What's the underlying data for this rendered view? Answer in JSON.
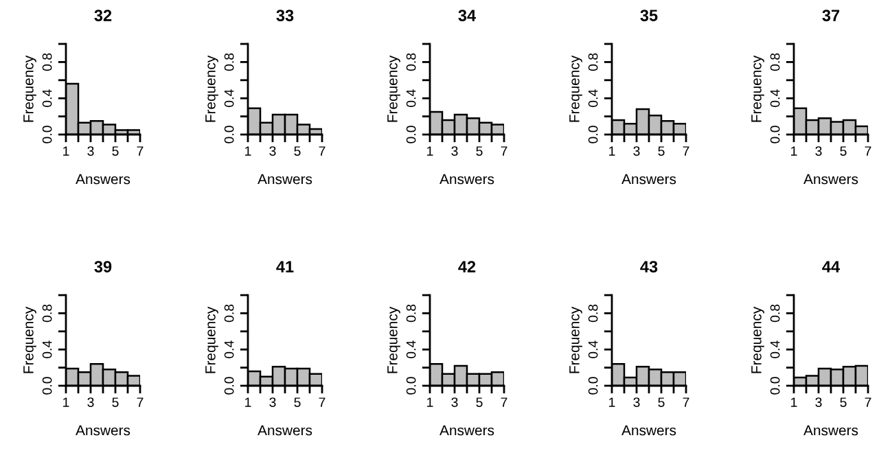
{
  "chart_data": [
    {
      "type": "histogram",
      "title": "32",
      "xlabel": "Answers",
      "ylabel": "Frequency",
      "bins": [
        1,
        2,
        3,
        4,
        5,
        6,
        7
      ],
      "values": [
        0.56,
        0.13,
        0.15,
        0.11,
        0.05,
        0.05
      ],
      "color": "#bebebe",
      "xlim": [
        1,
        7
      ],
      "ylim": [
        0,
        1
      ],
      "xticks": [
        1,
        {
          "value": 2,
          "label": null
        },
        3,
        {
          "value": 4,
          "label": null
        },
        5,
        {
          "value": 6,
          "label": null
        },
        7
      ],
      "yticks": [
        {
          "value": 0,
          "label": "0.0"
        },
        {
          "value": 0.2,
          "label": null
        },
        {
          "value": 0.4,
          "label": "0.4"
        },
        {
          "value": 0.6,
          "label": null
        },
        {
          "value": 0.8,
          "label": "0.8"
        },
        {
          "value": 1,
          "label": null
        }
      ]
    },
    {
      "type": "histogram",
      "title": "33",
      "xlabel": "Answers",
      "ylabel": "Frequency",
      "bins": [
        1,
        2,
        3,
        4,
        5,
        6,
        7
      ],
      "values": [
        0.29,
        0.13,
        0.22,
        0.22,
        0.11,
        0.06
      ],
      "color": "#bebebe",
      "xlim": [
        1,
        7
      ],
      "ylim": [
        0,
        1
      ],
      "xticks": [
        1,
        {
          "value": 2,
          "label": null
        },
        3,
        {
          "value": 4,
          "label": null
        },
        5,
        {
          "value": 6,
          "label": null
        },
        7
      ],
      "yticks": [
        {
          "value": 0,
          "label": "0.0"
        },
        {
          "value": 0.2,
          "label": null
        },
        {
          "value": 0.4,
          "label": "0.4"
        },
        {
          "value": 0.6,
          "label": null
        },
        {
          "value": 0.8,
          "label": "0.8"
        },
        {
          "value": 1,
          "label": null
        }
      ]
    },
    {
      "type": "histogram",
      "title": "34",
      "xlabel": "Answers",
      "ylabel": "Frequency",
      "bins": [
        1,
        2,
        3,
        4,
        5,
        6,
        7
      ],
      "values": [
        0.25,
        0.16,
        0.22,
        0.18,
        0.13,
        0.11
      ],
      "color": "#bebebe",
      "xlim": [
        1,
        7
      ],
      "ylim": [
        0,
        1
      ],
      "xticks": [
        1,
        {
          "value": 2,
          "label": null
        },
        3,
        {
          "value": 4,
          "label": null
        },
        5,
        {
          "value": 6,
          "label": null
        },
        7
      ],
      "yticks": [
        {
          "value": 0,
          "label": "0.0"
        },
        {
          "value": 0.2,
          "label": null
        },
        {
          "value": 0.4,
          "label": "0.4"
        },
        {
          "value": 0.6,
          "label": null
        },
        {
          "value": 0.8,
          "label": "0.8"
        },
        {
          "value": 1,
          "label": null
        }
      ]
    },
    {
      "type": "histogram",
      "title": "35",
      "xlabel": "Answers",
      "ylabel": "Frequency",
      "bins": [
        1,
        2,
        3,
        4,
        5,
        6,
        7
      ],
      "values": [
        0.16,
        0.12,
        0.28,
        0.21,
        0.15,
        0.12
      ],
      "color": "#bebebe",
      "xlim": [
        1,
        7
      ],
      "ylim": [
        0,
        1
      ],
      "xticks": [
        1,
        {
          "value": 2,
          "label": null
        },
        3,
        {
          "value": 4,
          "label": null
        },
        5,
        {
          "value": 6,
          "label": null
        },
        7
      ],
      "yticks": [
        {
          "value": 0,
          "label": "0.0"
        },
        {
          "value": 0.2,
          "label": null
        },
        {
          "value": 0.4,
          "label": "0.4"
        },
        {
          "value": 0.6,
          "label": null
        },
        {
          "value": 0.8,
          "label": "0.8"
        },
        {
          "value": 1,
          "label": null
        }
      ]
    },
    {
      "type": "histogram",
      "title": "37",
      "xlabel": "Answers",
      "ylabel": "Frequency",
      "bins": [
        1,
        2,
        3,
        4,
        5,
        6,
        7
      ],
      "values": [
        0.29,
        0.16,
        0.18,
        0.14,
        0.16,
        0.09
      ],
      "color": "#bebebe",
      "xlim": [
        1,
        7
      ],
      "ylim": [
        0,
        1
      ],
      "xticks": [
        1,
        {
          "value": 2,
          "label": null
        },
        3,
        {
          "value": 4,
          "label": null
        },
        5,
        {
          "value": 6,
          "label": null
        },
        7
      ],
      "yticks": [
        {
          "value": 0,
          "label": "0.0"
        },
        {
          "value": 0.2,
          "label": null
        },
        {
          "value": 0.4,
          "label": "0.4"
        },
        {
          "value": 0.6,
          "label": null
        },
        {
          "value": 0.8,
          "label": "0.8"
        },
        {
          "value": 1,
          "label": null
        }
      ]
    },
    {
      "type": "histogram",
      "title": "39",
      "xlabel": "Answers",
      "ylabel": "Frequency",
      "bins": [
        1,
        2,
        3,
        4,
        5,
        6,
        7
      ],
      "values": [
        0.19,
        0.15,
        0.24,
        0.18,
        0.15,
        0.11
      ],
      "color": "#bebebe",
      "xlim": [
        1,
        7
      ],
      "ylim": [
        0,
        1
      ],
      "xticks": [
        1,
        {
          "value": 2,
          "label": null
        },
        3,
        {
          "value": 4,
          "label": null
        },
        5,
        {
          "value": 6,
          "label": null
        },
        7
      ],
      "yticks": [
        {
          "value": 0,
          "label": "0.0"
        },
        {
          "value": 0.2,
          "label": null
        },
        {
          "value": 0.4,
          "label": "0.4"
        },
        {
          "value": 0.6,
          "label": null
        },
        {
          "value": 0.8,
          "label": "0.8"
        },
        {
          "value": 1,
          "label": null
        }
      ]
    },
    {
      "type": "histogram",
      "title": "41",
      "xlabel": "Answers",
      "ylabel": "Frequency",
      "bins": [
        1,
        2,
        3,
        4,
        5,
        6,
        7
      ],
      "values": [
        0.16,
        0.1,
        0.21,
        0.19,
        0.19,
        0.13
      ],
      "color": "#bebebe",
      "xlim": [
        1,
        7
      ],
      "ylim": [
        0,
        1
      ],
      "xticks": [
        1,
        {
          "value": 2,
          "label": null
        },
        3,
        {
          "value": 4,
          "label": null
        },
        5,
        {
          "value": 6,
          "label": null
        },
        7
      ],
      "yticks": [
        {
          "value": 0,
          "label": "0.0"
        },
        {
          "value": 0.2,
          "label": null
        },
        {
          "value": 0.4,
          "label": "0.4"
        },
        {
          "value": 0.6,
          "label": null
        },
        {
          "value": 0.8,
          "label": "0.8"
        },
        {
          "value": 1,
          "label": null
        }
      ]
    },
    {
      "type": "histogram",
      "title": "42",
      "xlabel": "Answers",
      "ylabel": "Frequency",
      "bins": [
        1,
        2,
        3,
        4,
        5,
        6,
        7
      ],
      "values": [
        0.24,
        0.13,
        0.22,
        0.13,
        0.13,
        0.15
      ],
      "color": "#bebebe",
      "xlim": [
        1,
        7
      ],
      "ylim": [
        0,
        1
      ],
      "xticks": [
        1,
        {
          "value": 2,
          "label": null
        },
        3,
        {
          "value": 4,
          "label": null
        },
        5,
        {
          "value": 6,
          "label": null
        },
        7
      ],
      "yticks": [
        {
          "value": 0,
          "label": "0.0"
        },
        {
          "value": 0.2,
          "label": null
        },
        {
          "value": 0.4,
          "label": "0.4"
        },
        {
          "value": 0.6,
          "label": null
        },
        {
          "value": 0.8,
          "label": "0.8"
        },
        {
          "value": 1,
          "label": null
        }
      ]
    },
    {
      "type": "histogram",
      "title": "43",
      "xlabel": "Answers",
      "ylabel": "Frequency",
      "bins": [
        1,
        2,
        3,
        4,
        5,
        6,
        7
      ],
      "values": [
        0.24,
        0.09,
        0.21,
        0.18,
        0.15,
        0.15
      ],
      "color": "#bebebe",
      "xlim": [
        1,
        7
      ],
      "ylim": [
        0,
        1
      ],
      "xticks": [
        1,
        {
          "value": 2,
          "label": null
        },
        3,
        {
          "value": 4,
          "label": null
        },
        5,
        {
          "value": 6,
          "label": null
        },
        7
      ],
      "yticks": [
        {
          "value": 0,
          "label": "0.0"
        },
        {
          "value": 0.2,
          "label": null
        },
        {
          "value": 0.4,
          "label": "0.4"
        },
        {
          "value": 0.6,
          "label": null
        },
        {
          "value": 0.8,
          "label": "0.8"
        },
        {
          "value": 1,
          "label": null
        }
      ]
    },
    {
      "type": "histogram",
      "title": "44",
      "xlabel": "Answers",
      "ylabel": "Frequency",
      "bins": [
        1,
        2,
        3,
        4,
        5,
        6,
        7
      ],
      "values": [
        0.09,
        0.11,
        0.19,
        0.18,
        0.21,
        0.22
      ],
      "color": "#bebebe",
      "xlim": [
        1,
        7
      ],
      "ylim": [
        0,
        1
      ],
      "xticks": [
        1,
        {
          "value": 2,
          "label": null
        },
        3,
        {
          "value": 4,
          "label": null
        },
        5,
        {
          "value": 6,
          "label": null
        },
        7
      ],
      "yticks": [
        {
          "value": 0,
          "label": "0.0"
        },
        {
          "value": 0.2,
          "label": null
        },
        {
          "value": 0.4,
          "label": "0.4"
        },
        {
          "value": 0.6,
          "label": null
        },
        {
          "value": 0.8,
          "label": "0.8"
        },
        {
          "value": 1,
          "label": null
        }
      ]
    }
  ]
}
